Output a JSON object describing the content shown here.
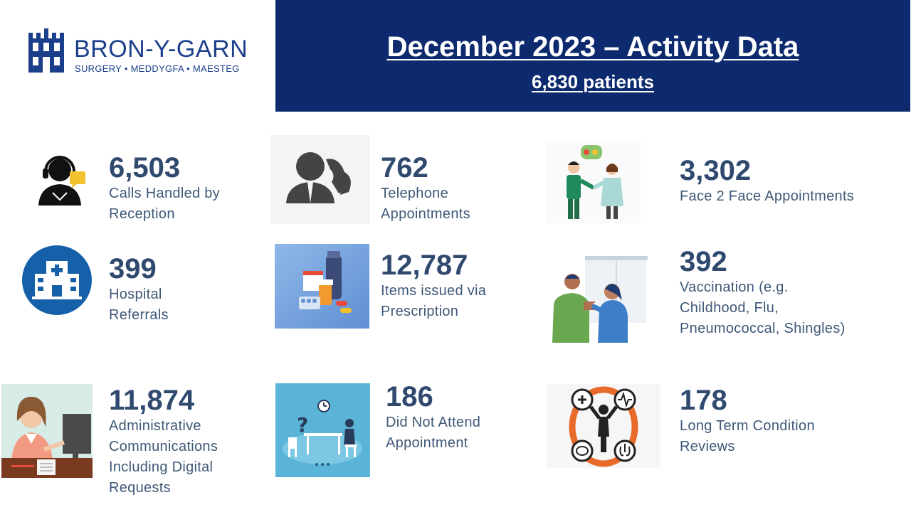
{
  "logo": {
    "name": "BRON-Y-GARN",
    "sub": "SURGERY • MEDDYGFA • MAESTEG"
  },
  "header": {
    "title": "December 2023 – Activity Data",
    "subtitle": "6,830 patients"
  },
  "stats": [
    {
      "value": "6,503",
      "label": "Calls Handled by\nReception",
      "icon": "receptionist-headset-icon"
    },
    {
      "value": "762",
      "label": "Telephone\nAppointments",
      "icon": "phone-call-icon"
    },
    {
      "value": "3,302",
      "label": "Face 2 Face Appointments",
      "icon": "doctor-patient-icon"
    },
    {
      "value": "399",
      "label": "Hospital\nReferrals",
      "icon": "hospital-icon"
    },
    {
      "value": "12,787",
      "label": "Items issued via\nPrescription",
      "icon": "medication-icon"
    },
    {
      "value": "392",
      "label": "Vaccination (e.g.\nChildhood, Flu,\nPneumococcal, Shingles)",
      "icon": "vaccination-icon"
    },
    {
      "value": "11,874",
      "label": "Administrative\nCommunications\nIncluding Digital\nRequests",
      "icon": "admin-desk-icon"
    },
    {
      "value": "186",
      "label": "Did Not Attend\nAppointment",
      "icon": "empty-waiting-room-icon"
    },
    {
      "value": "178",
      "label": "Long Term Condition\nReviews",
      "icon": "long-term-condition-icon"
    }
  ],
  "colors": {
    "header_bg": "#0d2a6e",
    "text": "#2f4a6e",
    "logo": "#1c3f8c",
    "accent_orange": "#e86a2a",
    "hospital_blue": "#1560a8"
  }
}
